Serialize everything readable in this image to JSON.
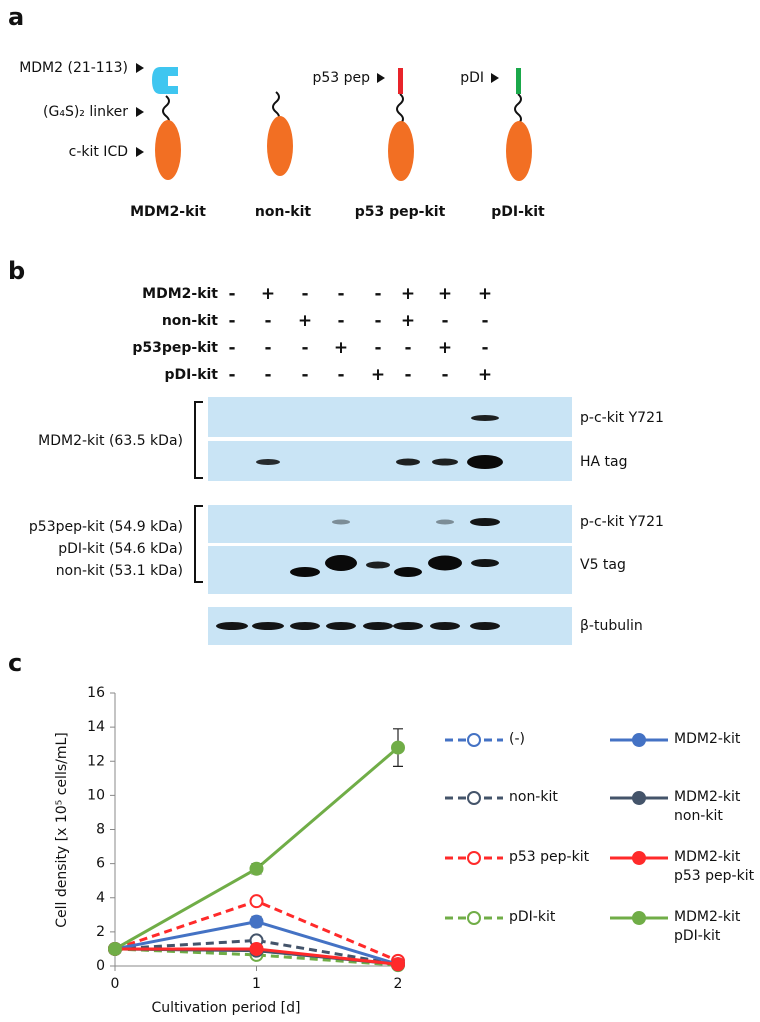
{
  "panel_a": {
    "label": "a",
    "annotations": [
      "MDM2 (21-113)",
      "(G₄S)₂ linker",
      "c-kit ICD",
      "p53 pep",
      "pDI"
    ],
    "constructs": [
      "MDM2-kit",
      "non-kit",
      "p53 pep-kit",
      "pDI-kit"
    ]
  },
  "panel_b": {
    "label": "b",
    "rows": [
      "MDM2-kit",
      "non-kit",
      "p53pep-kit",
      "pDI-kit"
    ],
    "signs": [
      [
        "-",
        "+",
        "-",
        "-",
        "-",
        "+",
        "+",
        "+"
      ],
      [
        "-",
        "-",
        "+",
        "-",
        "-",
        "+",
        "-",
        "-"
      ],
      [
        "-",
        "-",
        "-",
        "+",
        "-",
        "-",
        "+",
        "-"
      ],
      [
        "-",
        "-",
        "-",
        "-",
        "+",
        "-",
        "-",
        "+"
      ]
    ],
    "blot_groups": [
      "MDM2-kit (63.5 kDa)",
      "p53pep-kit (54.9 kDa)",
      "pDI-kit (54.6 kDa)",
      "non-kit (53.1 kDa)"
    ],
    "blot_labels": [
      "p-c-kit Y721",
      "HA tag",
      "p-c-kit Y721",
      "V5 tag",
      "β-tubulin"
    ]
  },
  "chart_data": {
    "type": "line",
    "panel_label": "c",
    "x_label": "Cultivation period [d]",
    "y_label": "Cell density [x 10⁵ cells/mL]",
    "x": [
      0,
      1,
      2
    ],
    "xlim": [
      0,
      2
    ],
    "xticks": [
      0,
      1,
      2
    ],
    "ylim": [
      0,
      16
    ],
    "yticks": [
      0,
      2,
      4,
      6,
      8,
      10,
      12,
      14,
      16
    ],
    "series": [
      {
        "name": "(-)",
        "color": "#4472c4",
        "dashed": true,
        "marker": "open",
        "values": [
          1,
          0.9,
          0.1
        ]
      },
      {
        "name": "non-kit",
        "color": "#44546a",
        "dashed": true,
        "marker": "open",
        "values": [
          1,
          1.5,
          0.1
        ]
      },
      {
        "name": "p53 pep-kit",
        "color": "#ff2a2a",
        "dashed": true,
        "marker": "open",
        "values": [
          1,
          3.8,
          0.3
        ]
      },
      {
        "name": "pDI-kit",
        "color": "#70ad47",
        "dashed": true,
        "marker": "open",
        "values": [
          1,
          0.65,
          0.05
        ]
      },
      {
        "name": "MDM2-kit",
        "color": "#4472c4",
        "dashed": false,
        "marker": "filled",
        "values": [
          1,
          2.6,
          0.1
        ],
        "errors": [
          0,
          0.3,
          0
        ]
      },
      {
        "name": "MDM2-kit\nnon-kit",
        "color": "#44546a",
        "dashed": false,
        "marker": "filled",
        "values": [
          1,
          0.9,
          0.1
        ]
      },
      {
        "name": "MDM2-kit\np53 pep-kit",
        "color": "#ff2a2a",
        "dashed": false,
        "marker": "filled",
        "values": [
          1,
          1.0,
          0.1
        ]
      },
      {
        "name": "MDM2-kit\npDI-kit",
        "color": "#70ad47",
        "dashed": false,
        "marker": "filled",
        "values": [
          1,
          5.7,
          12.8
        ],
        "errors": [
          0,
          0.3,
          1.1
        ]
      }
    ]
  }
}
